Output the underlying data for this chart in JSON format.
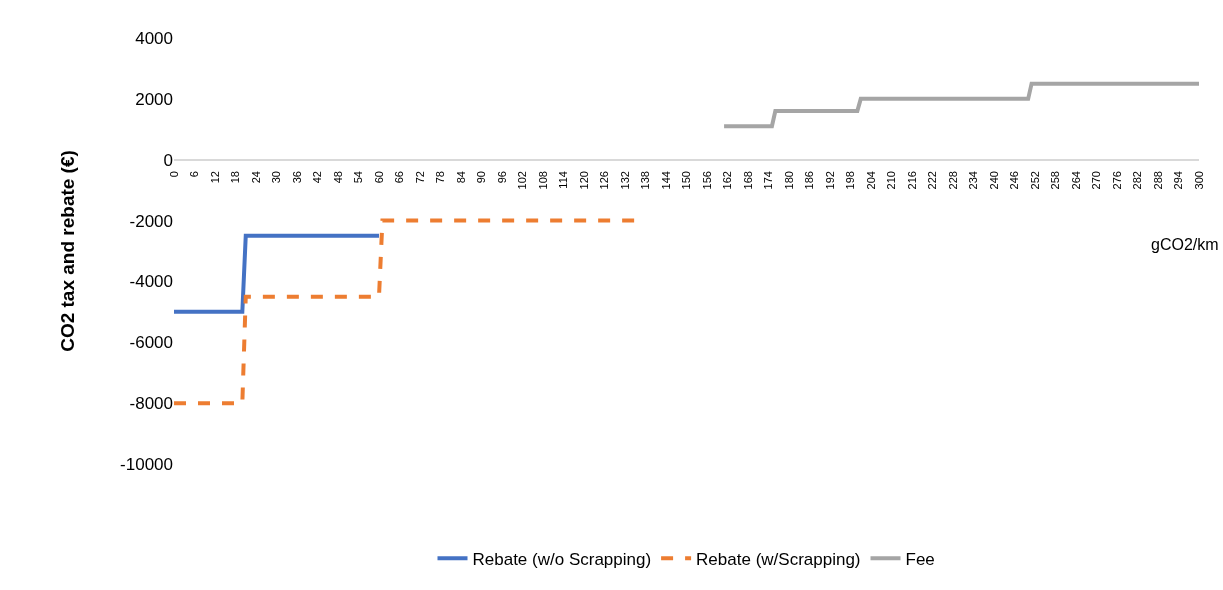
{
  "chart_data": {
    "type": "line",
    "xlabel": "gCO2/km",
    "ylabel": "CO2 tax and rebate (€)",
    "xlim": [
      0,
      300
    ],
    "xticks": [
      0,
      6,
      12,
      18,
      24,
      30,
      36,
      42,
      48,
      54,
      60,
      66,
      72,
      78,
      84,
      90,
      96,
      102,
      108,
      114,
      120,
      126,
      132,
      138,
      144,
      150,
      156,
      162,
      168,
      174,
      180,
      186,
      192,
      198,
      204,
      210,
      216,
      222,
      228,
      234,
      240,
      246,
      252,
      258,
      264,
      270,
      276,
      282,
      288,
      294,
      300
    ],
    "ylim": [
      -10000,
      4000
    ],
    "yticks": [
      -10000,
      -8000,
      -6000,
      -4000,
      -2000,
      0,
      2000,
      4000
    ],
    "legend": "bottom",
    "marker": "none",
    "series": [
      {
        "name": "Rebate (w/o Scrapping)",
        "color": "#4472c4",
        "line_style": "solid",
        "x": [
          0,
          20,
          21,
          60
        ],
        "values": [
          -5000,
          -5000,
          -2500,
          -2500
        ]
      },
      {
        "name": "Rebate (w/Scrapping)",
        "color": "#ed7d31",
        "line_style": "dashed",
        "x": [
          0,
          20,
          21,
          60,
          61,
          135
        ],
        "values": [
          -8000,
          -8000,
          -4500,
          -4500,
          -2000,
          -2000
        ]
      },
      {
        "name": "Fee",
        "color": "#a5a5a5",
        "line_style": "solid",
        "x": [
          161,
          175,
          176,
          200,
          201,
          250,
          251,
          300
        ],
        "values": [
          1100,
          1100,
          1600,
          1600,
          2000,
          2000,
          2500,
          2500
        ]
      }
    ]
  }
}
